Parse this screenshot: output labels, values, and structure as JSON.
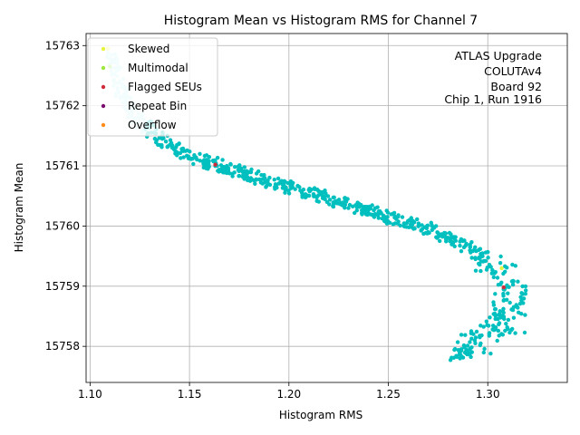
{
  "chart_data": {
    "type": "scatter",
    "title": "Histogram Mean vs Histogram RMS for Channel 7",
    "xlabel": "Histogram RMS",
    "ylabel": "Histogram Mean",
    "xlim": [
      1.098,
      1.34
    ],
    "ylim": [
      15757.4,
      15763.2
    ],
    "xticks": [
      1.1,
      1.15,
      1.2,
      1.25,
      1.3
    ],
    "xtick_labels": [
      "1.10",
      "1.15",
      "1.20",
      "1.25",
      "1.30"
    ],
    "yticks": [
      15758,
      15759,
      15760,
      15761,
      15762,
      15763
    ],
    "ytick_labels": [
      "15758",
      "15759",
      "15760",
      "15761",
      "15762",
      "15763"
    ],
    "grid": true,
    "legend_position": "top-left",
    "annotation_lines": [
      "ATLAS Upgrade",
      "COLUTAv4",
      "Board 92",
      "Chip 1, Run 1916"
    ],
    "annotation_position": "top-right",
    "series": [
      {
        "name": "Skewed",
        "color": "#e6f53c",
        "points": [
          [
            1.109,
            15762.95
          ],
          [
            1.307,
            15759.3
          ]
        ]
      },
      {
        "name": "Multimodal",
        "color": "#9be83a",
        "points": [
          [
            1.11,
            15762.65
          ]
        ]
      },
      {
        "name": "Flagged SEUs",
        "color": "#d02c3c",
        "points": [
          [
            1.163,
            15761.02
          ],
          [
            1.308,
            15758.98
          ]
        ]
      },
      {
        "name": "Repeat Bin",
        "color": "#7a0d6e",
        "points": []
      },
      {
        "name": "Overflow",
        "color": "#ff8c1a",
        "points": []
      }
    ],
    "main_cloud": {
      "description_free": true,
      "color_primary": "#00bfbf",
      "color_light": "#c6f3f3",
      "outline": [
        [
          1.11,
          15762.9
        ],
        [
          1.115,
          15762.3
        ],
        [
          1.12,
          15761.9
        ],
        [
          1.13,
          15761.6
        ],
        [
          1.14,
          15761.35
        ],
        [
          1.15,
          15761.15
        ],
        [
          1.16,
          15761.05
        ],
        [
          1.17,
          15760.95
        ],
        [
          1.18,
          15760.85
        ],
        [
          1.19,
          15760.75
        ],
        [
          1.2,
          15760.65
        ],
        [
          1.21,
          15760.55
        ],
        [
          1.22,
          15760.45
        ],
        [
          1.23,
          15760.35
        ],
        [
          1.24,
          15760.25
        ],
        [
          1.25,
          15760.15
        ],
        [
          1.26,
          15760.05
        ],
        [
          1.27,
          15759.95
        ],
        [
          1.28,
          15759.8
        ],
        [
          1.29,
          15759.65
        ],
        [
          1.3,
          15759.4
        ],
        [
          1.31,
          15759.0
        ],
        [
          1.312,
          15758.7
        ],
        [
          1.31,
          15758.4
        ],
        [
          1.3,
          15758.15
        ],
        [
          1.29,
          15757.95
        ],
        [
          1.283,
          15757.85
        ]
      ]
    }
  }
}
